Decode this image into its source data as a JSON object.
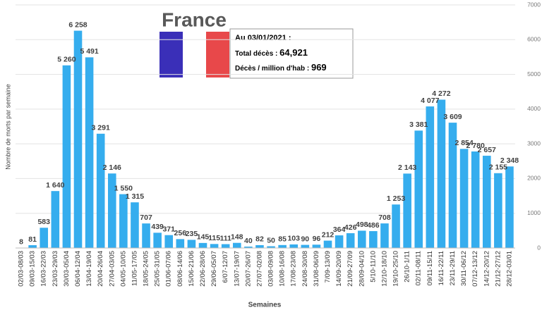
{
  "chart_data": {
    "type": "bar",
    "title": "France",
    "info": {
      "date": "Au 03/01/2021 :",
      "total_label": "Total décès : ",
      "total_value": "64,921",
      "per_million_label": "Décès / million d'hab : ",
      "per_million_value": "969"
    },
    "y_label": "Nombre de morts par semaine",
    "x_label": "Semaines",
    "categories": [
      "02/03-08/03",
      "09/03-15/03",
      "16/03-22/03",
      "23/03-29/03",
      "30/03-05/04",
      "06/04-12/04",
      "13/04-19/04",
      "20/04-26/04",
      "27/04-03/05",
      "04/05-10/05",
      "11/05-17/05",
      "18/05-24/05",
      "25/05-31/05",
      "01/06-07/06",
      "08/06-14/06",
      "15/06-21/06",
      "22/06-28/06",
      "29/06-05/07",
      "6/07-12/07",
      "13/07-19/07",
      "20/07-26/07",
      "27/07-02/08",
      "03/08-09/08",
      "10/08-16/08",
      "17/08-23/08",
      "24/08-30/08",
      "31/08-06/09",
      "7/09-13/09",
      "14/09-20/09",
      "21/09-27/09",
      "28/09-04/10",
      "5/10-11/10",
      "12/10-18/10",
      "19/10-25/10",
      "26/10-1/11",
      "02/11-08/11",
      "09/11-15/11",
      "16/11-22/11",
      "23/11-29/11",
      "30/11-06/12",
      "07/12-13/12",
      "14/12-20/12",
      "21/12-27/12",
      "28/12-03/01"
    ],
    "values": [
      8,
      81,
      583,
      1640,
      5260,
      6258,
      5491,
      3291,
      2146,
      1550,
      1315,
      707,
      439,
      371,
      256,
      235,
      145,
      115,
      111,
      148,
      40,
      82,
      50,
      85,
      103,
      90,
      96,
      212,
      364,
      426,
      498,
      486,
      708,
      1253,
      2143,
      3381,
      4077,
      4272,
      3609,
      2854,
      2780,
      2657,
      2155,
      2348
    ],
    "value_labels": [
      "8",
      "81",
      "583",
      "1 640",
      "5 260",
      "6 258",
      "5 491",
      "3 291",
      "2 146",
      "1 550",
      "1 315",
      "707",
      "439",
      "371",
      "256",
      "235",
      "145",
      "115",
      "111",
      "148",
      "40",
      "82",
      "50",
      "85",
      "103",
      "90",
      "96",
      "212",
      "364",
      "426",
      "498",
      "486",
      "708",
      "1 253",
      "2 143",
      "3 381",
      "4 077",
      "4 272",
      "3 609",
      "2 854",
      "2 780",
      "2 657",
      "2 155",
      "2 348"
    ],
    "color": "#35adee",
    "ylim": [
      0,
      7000
    ],
    "yticks": [
      0,
      1000,
      2000,
      3000,
      4000,
      5000,
      6000,
      7000
    ],
    "grid": true
  }
}
